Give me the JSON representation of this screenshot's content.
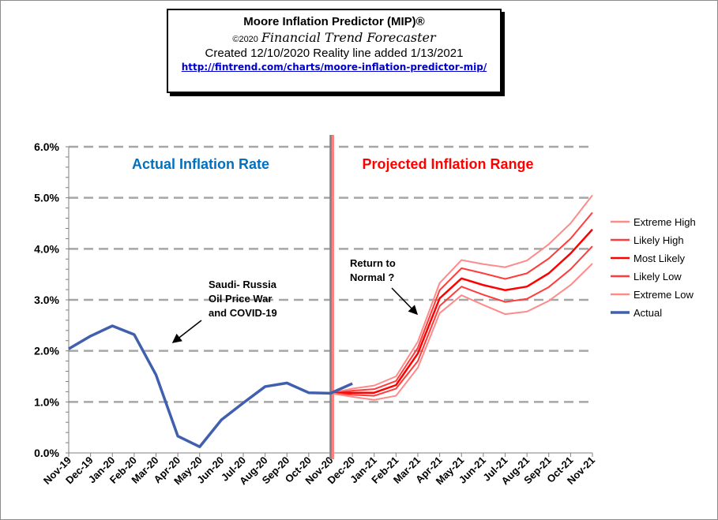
{
  "header": {
    "title": "Moore Inflation Predictor (MIP)®",
    "copyright": "©2020",
    "publisher": "Financial Trend Forecaster",
    "created": "Created  12/10/2020 Reality line added 1/13/2021",
    "url": "http://fintrend.com/charts/moore-inflation-predictor-mip/"
  },
  "chart_data": {
    "type": "line",
    "title": "",
    "xlabel": "",
    "ylabel": "",
    "ylim": [
      0,
      6
    ],
    "yticks": [
      "0.0%",
      "1.0%",
      "2.0%",
      "3.0%",
      "4.0%",
      "5.0%",
      "6.0%"
    ],
    "grid": true,
    "legend_position": "right",
    "categories": [
      "Nov-19",
      "Dec-19",
      "Jan-20",
      "Feb-20",
      "Mar-20",
      "Apr-20",
      "May-20",
      "Jun-20",
      "Jul-20",
      "Aug-20",
      "Sep-20",
      "Oct-20",
      "Nov-20",
      "Dec-20",
      "Jan-21",
      "Feb-21",
      "Mar-21",
      "Apr-21",
      "May-21",
      "Jun-21",
      "Jul-21",
      "Aug-21",
      "Sep-21",
      "Oct-21",
      "Nov-21"
    ],
    "divider_at": "Nov-20",
    "section_labels": {
      "left": "Actual Inflation Rate",
      "right": "Projected Inflation Range",
      "left_color": "#0070c0",
      "right_color": "#ff0000"
    },
    "annotations": [
      {
        "text": [
          "Saudi- Russia",
          "Oil Price War",
          "and COVID-19"
        ],
        "points_to": "Apr-20"
      },
      {
        "text": [
          "Return to",
          "Normal ?"
        ],
        "points_to": "Mar-21"
      }
    ],
    "series": [
      {
        "name": "Extreme High",
        "color": "#ff8a8a",
        "values": [
          null,
          null,
          null,
          null,
          null,
          null,
          null,
          null,
          null,
          null,
          null,
          null,
          1.17,
          1.26,
          1.32,
          1.5,
          2.18,
          3.33,
          3.78,
          3.7,
          3.64,
          3.77,
          4.09,
          4.5,
          5.05
        ]
      },
      {
        "name": "Likely High",
        "color": "#ff3b3b",
        "values": [
          null,
          null,
          null,
          null,
          null,
          null,
          null,
          null,
          null,
          null,
          null,
          null,
          1.17,
          1.22,
          1.25,
          1.41,
          2.06,
          3.19,
          3.62,
          3.52,
          3.41,
          3.52,
          3.81,
          4.2,
          4.71
        ]
      },
      {
        "name": "Most Likely",
        "color": "#ff0000",
        "values": [
          null,
          null,
          null,
          null,
          null,
          null,
          null,
          null,
          null,
          null,
          null,
          null,
          1.17,
          1.18,
          1.18,
          1.33,
          1.95,
          3.03,
          3.42,
          3.29,
          3.19,
          3.26,
          3.52,
          3.91,
          4.38
        ]
      },
      {
        "name": "Likely Low",
        "color": "#ff3b3b",
        "values": [
          null,
          null,
          null,
          null,
          null,
          null,
          null,
          null,
          null,
          null,
          null,
          null,
          1.17,
          1.14,
          1.12,
          1.26,
          1.8,
          2.88,
          3.26,
          3.1,
          2.96,
          3.02,
          3.25,
          3.6,
          4.05
        ]
      },
      {
        "name": "Extreme Low",
        "color": "#ff8a8a",
        "values": [
          null,
          null,
          null,
          null,
          null,
          null,
          null,
          null,
          null,
          null,
          null,
          null,
          1.17,
          1.1,
          1.04,
          1.12,
          1.67,
          2.74,
          3.09,
          2.9,
          2.72,
          2.77,
          2.98,
          3.29,
          3.71
        ]
      },
      {
        "name": "Actual",
        "color": "#4060ae",
        "values": [
          2.04,
          2.29,
          2.49,
          2.32,
          1.53,
          0.33,
          0.12,
          0.65,
          0.98,
          1.3,
          1.37,
          1.18,
          1.17,
          1.36,
          null,
          null,
          null,
          null,
          null,
          null,
          null,
          null,
          null,
          null,
          null
        ]
      }
    ]
  }
}
